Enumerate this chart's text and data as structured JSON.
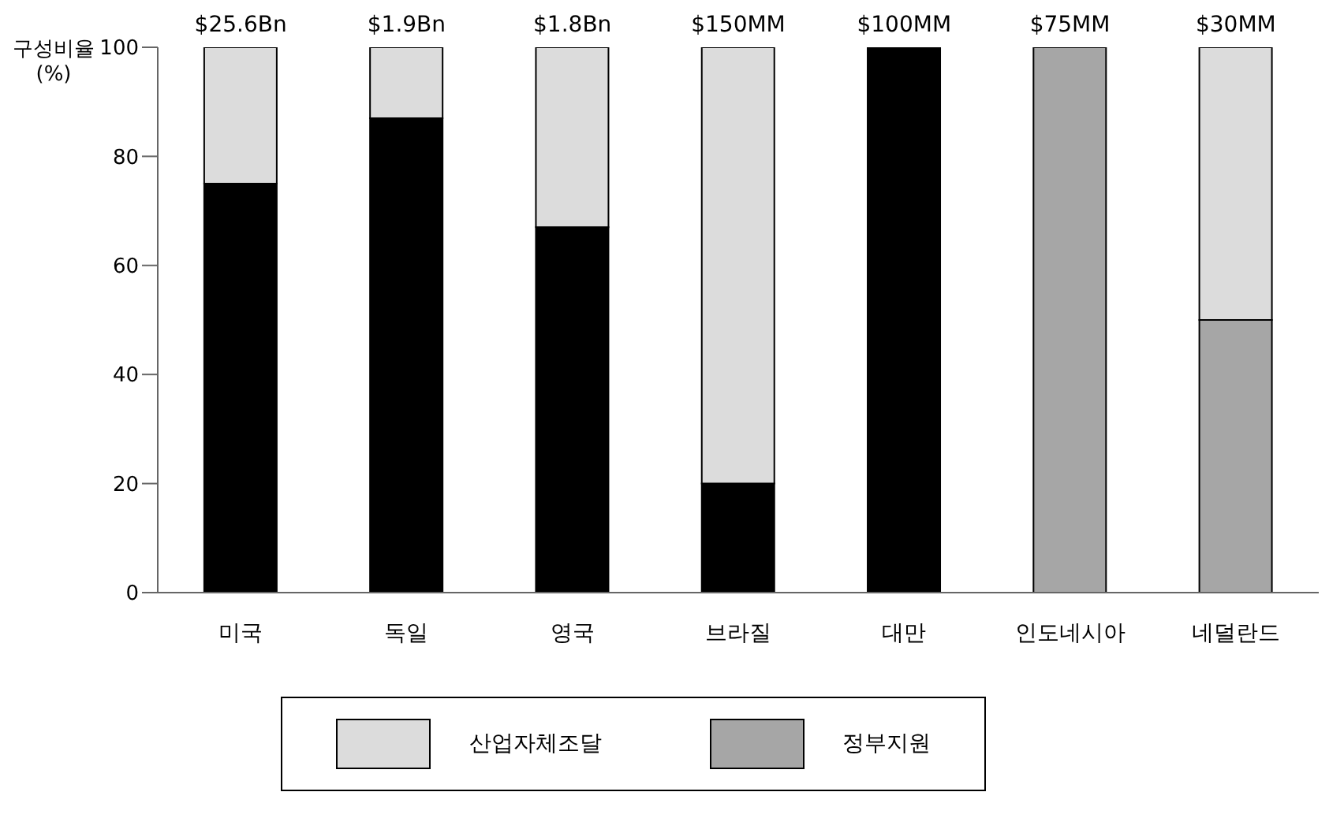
{
  "chart_data": {
    "type": "bar",
    "stacked": true,
    "ylabel": "구성비율 (%)",
    "categories": [
      "미국",
      "독일",
      "영국",
      "브라질",
      "대만",
      "인도네시아",
      "네덜란드"
    ],
    "series": [
      {
        "color": "#000000",
        "values": [
          75,
          87,
          67,
          20,
          100,
          null,
          null
        ]
      },
      {
        "name": "정부지원",
        "color": "#a6a6a6",
        "values": [
          null,
          null,
          null,
          null,
          null,
          100,
          50
        ]
      },
      {
        "name": "산업자체조달",
        "color": "#dcdcdc",
        "values": [
          25,
          13,
          33,
          80,
          null,
          null,
          50
        ]
      }
    ],
    "annotations": [
      {
        "text": "$25.6Bn",
        "x": "미국",
        "y": 100
      },
      {
        "text": "$1.9Bn",
        "x": "독일",
        "y": 100
      },
      {
        "text": "$1.8Bn",
        "x": "영국",
        "y": 100
      },
      {
        "text": "$150MM",
        "x": "브라질",
        "y": 100
      },
      {
        "text": "$100MM",
        "x": "대만",
        "y": 100
      },
      {
        "text": "$75MM",
        "x": "인도네시아",
        "y": 100
      },
      {
        "text": "$30MM",
        "x": "네덜란드",
        "y": 100
      }
    ],
    "ylim": [
      0,
      100
    ],
    "yticks": [
      0,
      20,
      40,
      60,
      80,
      100
    ],
    "grid": false,
    "legend": "bottom"
  }
}
